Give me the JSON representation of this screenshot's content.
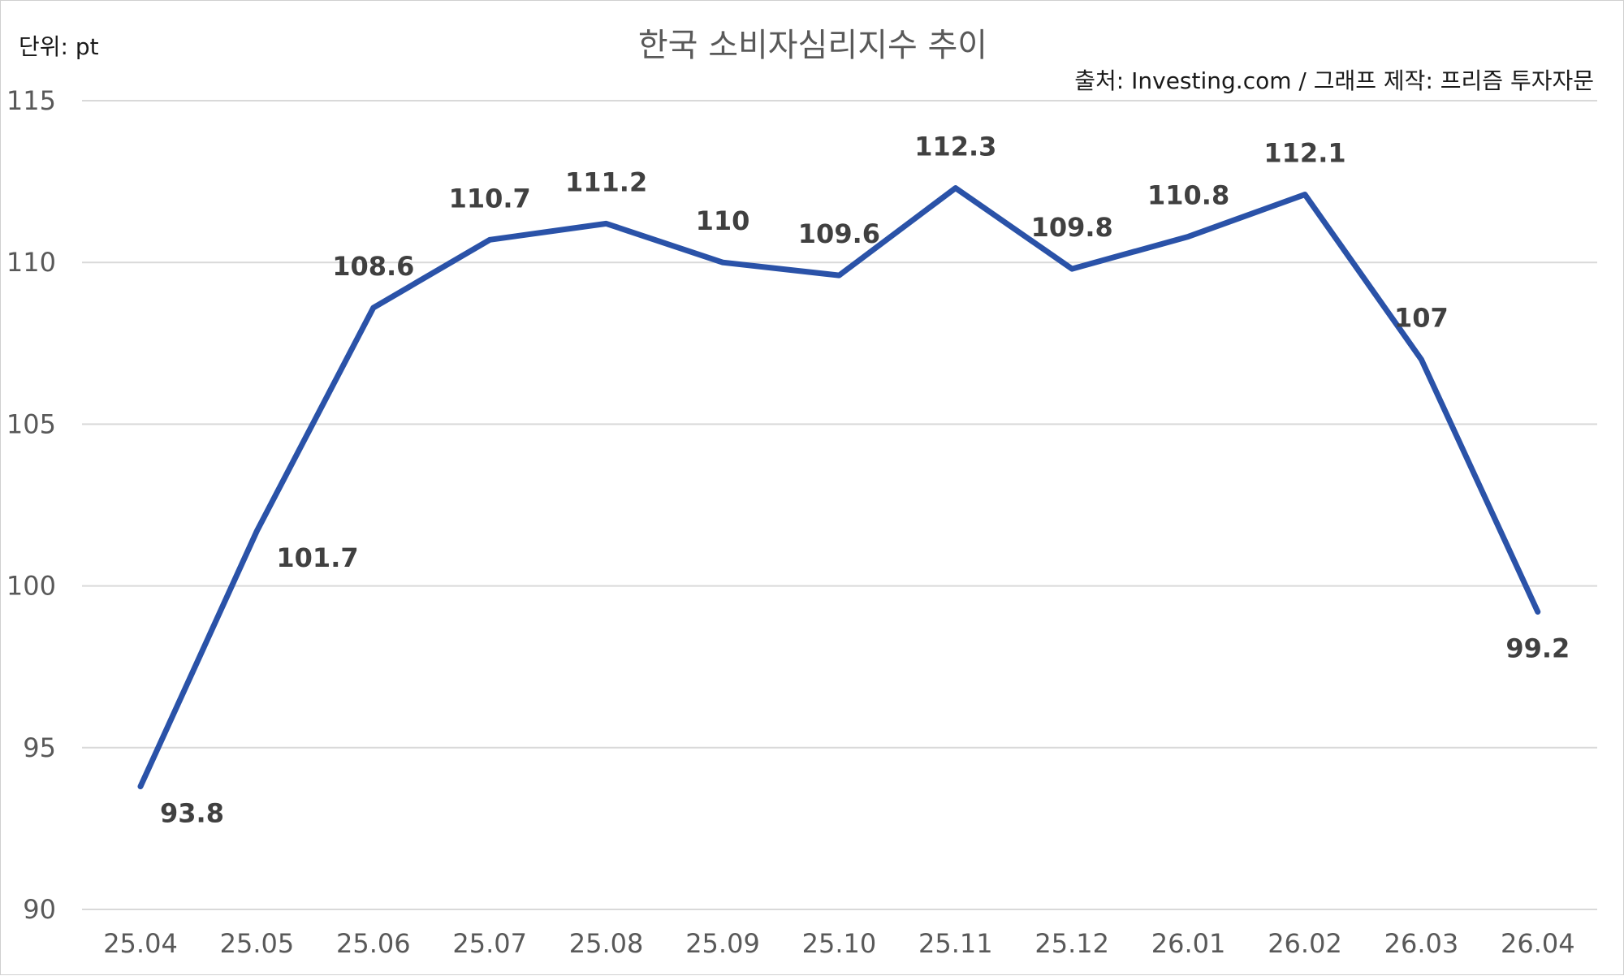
{
  "chart_data": {
    "type": "line",
    "title": "한국 소비자심리지수 추이",
    "unit_label": "단위: pt",
    "source": "출처: Investing.com / 그래프 제작: 프리즘 투자자문",
    "categories": [
      "25.04",
      "25.05",
      "25.06",
      "25.07",
      "25.08",
      "25.09",
      "25.10",
      "25.11",
      "25.12",
      "26.01",
      "26.02",
      "26.03",
      "26.04"
    ],
    "series": [
      {
        "values": [
          93.8,
          101.7,
          108.6,
          110.7,
          111.2,
          110,
          109.6,
          112.3,
          109.8,
          110.8,
          112.1,
          107,
          99.2
        ],
        "labels": [
          "93.8",
          "101.7",
          "108.6",
          "110.7",
          "111.2",
          "110",
          "109.6",
          "112.3",
          "109.8",
          "110.8",
          "112.1",
          "107",
          "99.2"
        ],
        "color": "#2a52a8"
      }
    ],
    "yticks": [
      "90",
      "95",
      "100",
      "105",
      "110",
      "115"
    ],
    "ylim": [
      90,
      115
    ],
    "grid": true,
    "legend": false
  }
}
